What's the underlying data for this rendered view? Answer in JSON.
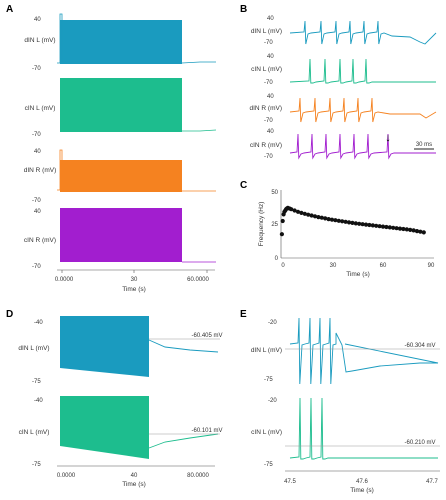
{
  "colors": {
    "dIN_L": "#1a9bbf",
    "cIN_L": "#1dbd8e",
    "dIN_R": "#f58220",
    "cIN_R": "#a21ecf",
    "freq": "#111111",
    "axis": "#555555"
  },
  "panels": {
    "A": {
      "label": "A",
      "traces": [
        {
          "ylabel": "dIN L (mV)",
          "ymax": "40",
          "ymin": "-70"
        },
        {
          "ylabel": "cIN L (mV)",
          "ymax": "",
          "ymin": "-70"
        },
        {
          "ylabel": "dIN R (mV)",
          "ymax": "40",
          "ymin": "-70"
        },
        {
          "ylabel": "cIN R (mV)",
          "ymax": "40",
          "ymin": "-70"
        }
      ],
      "xticks": [
        "0.0000",
        "30",
        "60.0000"
      ],
      "xlabel": "Time (s)"
    },
    "B": {
      "label": "B",
      "traces": [
        {
          "ylabel": "dIN L (mV)",
          "ymax": "40",
          "ymin": "-70"
        },
        {
          "ylabel": "cIN L (mV)",
          "ymax": "40",
          "ymin": "-70"
        },
        {
          "ylabel": "dIN R (mV)",
          "ymax": "40",
          "ymin": "-70"
        },
        {
          "ylabel": "cIN R (mV)",
          "ymax": "40",
          "ymin": "-70"
        }
      ],
      "scalebar": "30 ms",
      "arrow": "↓"
    },
    "C": {
      "label": "C",
      "ylabel": "Frequency (Hz)",
      "xlabel": "Time (s)",
      "yticks": [
        "50",
        "25",
        "0"
      ],
      "xticks": [
        "0",
        "30",
        "60",
        "90"
      ]
    },
    "D": {
      "label": "D",
      "traces": [
        {
          "ylabel": "dIN L (mV)",
          "ymax": "-40",
          "ymin": "-75",
          "vm": "-60.405 mV"
        },
        {
          "ylabel": "cIN L (mV)",
          "ymax": "-40",
          "ymin": "-75",
          "vm": "-60.101 mV"
        }
      ],
      "xticks": [
        "0.0000",
        "40",
        "80.0000"
      ],
      "xlabel": "Time (s)"
    },
    "E": {
      "label": "E",
      "traces": [
        {
          "ylabel": "dIN L (mV)",
          "ymax": "-20",
          "ymin": "-75",
          "vm": "-60.304 mV"
        },
        {
          "ylabel": "cIN L (mV)",
          "ymax": "-20",
          "ymin": "-75",
          "vm": "-60.210 mV"
        }
      ],
      "xticks": [
        "47.5",
        "47.6",
        "47.7"
      ],
      "xlabel": "Time (s)"
    }
  },
  "chart_data": {
    "type": "scatter",
    "title": "",
    "xlabel": "Time (s)",
    "ylabel": "Frequency (Hz)",
    "xlim": [
      0,
      90
    ],
    "ylim": [
      0,
      50
    ],
    "grid": false,
    "x": [
      0.5,
      1,
      1.5,
      2,
      2.5,
      3,
      3.5,
      4,
      5,
      6,
      8,
      10,
      12,
      14,
      16,
      18,
      20,
      22,
      24,
      26,
      28,
      30,
      32,
      34,
      36,
      38,
      40,
      42,
      44,
      46,
      48,
      50,
      52,
      54,
      56,
      58,
      60,
      62,
      64,
      66,
      68,
      70,
      72,
      74,
      76,
      78,
      80,
      82,
      84
    ],
    "y": [
      18,
      28,
      33,
      35,
      36,
      37,
      37.5,
      38,
      37.5,
      37,
      36,
      35,
      34.2,
      33.5,
      32.8,
      32.2,
      31.6,
      31,
      30.5,
      30,
      29.5,
      29,
      28.6,
      28.2,
      27.8,
      27.4,
      27,
      26.6,
      26.2,
      25.9,
      25.6,
      25.3,
      25,
      24.7,
      24.4,
      24.1,
      23.8,
      23.5,
      23.2,
      22.9,
      22.6,
      22.3,
      22,
      21.7,
      21.3,
      20.9,
      20.4,
      19.9,
      19.4
    ]
  }
}
